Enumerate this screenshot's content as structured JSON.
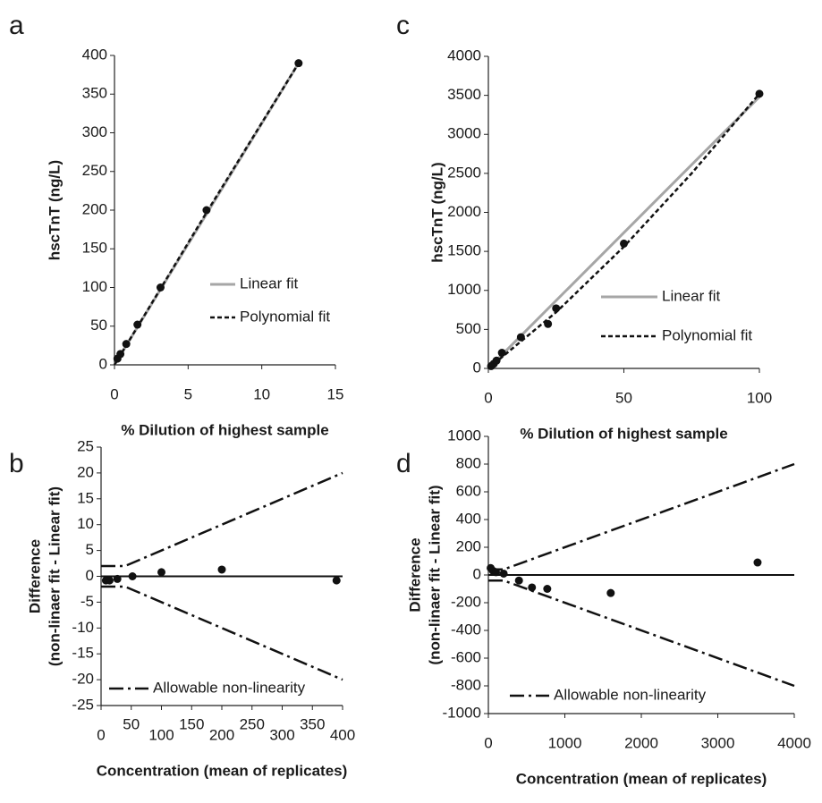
{
  "chart_data": [
    {
      "type": "scatter",
      "panel": "a",
      "xlabel": "% Dilution of highest sample",
      "ylabel": [
        "hscTnT (ng/L)"
      ],
      "xlim": [
        0,
        15
      ],
      "xticks": [
        0,
        5,
        10,
        15
      ],
      "ylim": [
        0,
        400
      ],
      "yticks": [
        0,
        50,
        100,
        150,
        200,
        250,
        300,
        350,
        400
      ],
      "points": {
        "color": "#111111",
        "x": [
          0.2,
          0.4,
          0.8,
          1.56,
          3.125,
          6.25,
          12.5
        ],
        "values": [
          8,
          14,
          27,
          52,
          100,
          200,
          390
        ]
      },
      "series": [
        {
          "name": "Linear fit",
          "color": "#a6a6a6",
          "dash": "solid",
          "x": [
            0,
            12.5
          ],
          "values": [
            0,
            390
          ]
        },
        {
          "name": "Polynomial fit",
          "color": "#111111",
          "dash": "dashed",
          "x": [
            0,
            6.25,
            12.5
          ],
          "values": [
            0,
            197,
            390
          ]
        }
      ]
    },
    {
      "type": "scatter",
      "panel": "c",
      "xlabel": "% Dilution of highest sample",
      "ylabel": [
        "hscTnT (ng/L)"
      ],
      "xlim": [
        0,
        100
      ],
      "xticks": [
        0,
        50,
        100
      ],
      "ylim": [
        0,
        4000
      ],
      "yticks": [
        0,
        500,
        1000,
        1500,
        2000,
        2500,
        3000,
        3500,
        4000
      ],
      "points": {
        "color": "#111111",
        "x": [
          1,
          2,
          3,
          5,
          12,
          22,
          25,
          50,
          100
        ],
        "values": [
          30,
          60,
          100,
          200,
          400,
          570,
          770,
          1600,
          3520
        ]
      },
      "series": [
        {
          "name": "Linear fit",
          "color": "#a6a6a6",
          "dash": "solid",
          "x": [
            0,
            100
          ],
          "values": [
            0,
            3480
          ]
        },
        {
          "name": "Polynomial fit",
          "color": "#111111",
          "dash": "dashed",
          "x": [
            0,
            25,
            50,
            75,
            100
          ],
          "values": [
            0,
            720,
            1560,
            2500,
            3520
          ]
        }
      ]
    },
    {
      "type": "scatter",
      "panel": "b",
      "xlabel": "Concentration (mean of replicates)",
      "ylabel": [
        "Difference",
        "(non-linaer fit - Linear fit)"
      ],
      "xlim": [
        0,
        400
      ],
      "xticks": [
        0,
        50,
        100,
        150,
        200,
        250,
        300,
        350,
        400
      ],
      "stagger": true,
      "ylim": [
        -25,
        25
      ],
      "yticks": [
        -25,
        -20,
        -15,
        -10,
        -5,
        0,
        5,
        10,
        15,
        20,
        25
      ],
      "hline": 0,
      "points": {
        "color": "#111111",
        "x": [
          8,
          14,
          27,
          52,
          100,
          200,
          390
        ],
        "values": [
          -0.8,
          -0.8,
          -0.5,
          0,
          0.8,
          1.3,
          -0.8
        ]
      },
      "series": [
        {
          "name": "Allowable non-linearity",
          "color": "#111111",
          "dash": "dash-dot",
          "x": [
            0,
            40,
            400
          ],
          "values": [
            2,
            2,
            20
          ],
          "values_lower": [
            -2,
            -2,
            -20
          ]
        }
      ]
    },
    {
      "type": "scatter",
      "panel": "d",
      "xlabel": "Concentration (mean of replicates)",
      "ylabel": [
        "Difference",
        "(non-linaer fit - Linear fit)"
      ],
      "xlim": [
        0,
        4000
      ],
      "xticks": [
        0,
        1000,
        2000,
        3000,
        4000
      ],
      "ylim": [
        -1000,
        1000
      ],
      "yticks": [
        -1000,
        -800,
        -600,
        -400,
        -200,
        0,
        200,
        400,
        600,
        800,
        1000
      ],
      "hline": 0,
      "points": {
        "color": "#111111",
        "x": [
          30,
          60,
          100,
          200,
          400,
          570,
          770,
          1600,
          3520
        ],
        "values": [
          50,
          30,
          20,
          10,
          -40,
          -90,
          -100,
          -130,
          90
        ]
      },
      "series": [
        {
          "name": "Allowable non-linearity",
          "color": "#111111",
          "dash": "dash-dot",
          "x": [
            0,
            200,
            4000
          ],
          "values": [
            40,
            40,
            800
          ],
          "values_lower": [
            -40,
            -40,
            -800
          ]
        }
      ]
    }
  ]
}
